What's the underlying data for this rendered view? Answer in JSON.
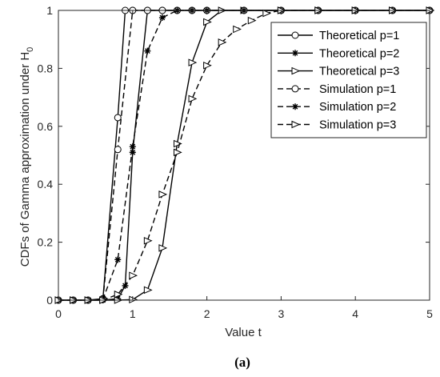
{
  "chart_data": {
    "type": "line",
    "xlabel": "Value t",
    "ylabel": "CDFs of Gamma approximation under H",
    "ylabel_subscript": "0",
    "caption": "(a)",
    "xlim": [
      0,
      5
    ],
    "ylim": [
      0,
      1
    ],
    "xticks": [
      0,
      1,
      2,
      3,
      4,
      5
    ],
    "yticks": [
      0,
      0.2,
      0.4,
      0.6,
      0.8,
      1
    ],
    "xtick_labels": [
      "0",
      "1",
      "2",
      "3",
      "4",
      "5"
    ],
    "ytick_labels": [
      "0",
      "0.2",
      "0.4",
      "0.6",
      "0.8",
      "1"
    ],
    "grid": false,
    "legend_position": "top-right",
    "series": [
      {
        "name": "Theoretical p=1",
        "marker": "circle",
        "dash": "solid",
        "color": "#000000",
        "x": [
          0,
          0.2,
          0.4,
          0.6,
          0.8,
          0.9,
          1.0,
          1.2,
          1.4,
          1.6,
          1.8,
          2,
          2.5,
          3,
          3.5,
          4,
          4.5,
          5
        ],
        "y": [
          0,
          0,
          0,
          0.005,
          0.63,
          1.0,
          1.0,
          1,
          1,
          1,
          1,
          1,
          1,
          1,
          1,
          1,
          1,
          1
        ]
      },
      {
        "name": "Theoretical p=2",
        "marker": "asterisk",
        "dash": "solid",
        "color": "#000000",
        "x": [
          0,
          0.2,
          0.4,
          0.6,
          0.8,
          0.9,
          1.0,
          1.2,
          1.4,
          1.6,
          1.8,
          2,
          2.5,
          3,
          3.5,
          4,
          4.5,
          5
        ],
        "y": [
          0,
          0,
          0,
          0,
          0.005,
          0.05,
          0.51,
          1.0,
          1,
          1,
          1,
          1,
          1,
          1,
          1,
          1,
          1,
          1
        ]
      },
      {
        "name": "Theoretical p=3",
        "marker": "triangle-right",
        "dash": "solid",
        "color": "#000000",
        "x": [
          0,
          0.2,
          0.4,
          0.6,
          0.8,
          1.0,
          1.2,
          1.4,
          1.6,
          1.8,
          2.0,
          2.2,
          2.5,
          3,
          3.5,
          4,
          4.5,
          5
        ],
        "y": [
          0,
          0,
          0,
          0,
          0,
          0.002,
          0.035,
          0.18,
          0.54,
          0.82,
          0.96,
          1.0,
          1,
          1,
          1,
          1,
          1,
          1
        ]
      },
      {
        "name": "Simulation p=1",
        "marker": "circle",
        "dash": "dashed",
        "color": "#000000",
        "x": [
          0,
          0.2,
          0.4,
          0.6,
          0.8,
          1.0,
          1.2,
          1.4,
          1.6,
          1.8,
          2,
          2.5,
          3,
          3.5,
          4,
          4.5,
          5
        ],
        "y": [
          0,
          0,
          0,
          0.003,
          0.52,
          1.0,
          1,
          1,
          1,
          1,
          1,
          1,
          1,
          1,
          1,
          1,
          1
        ]
      },
      {
        "name": "Simulation p=2",
        "marker": "asterisk",
        "dash": "dashed",
        "color": "#000000",
        "x": [
          0,
          0.2,
          0.4,
          0.6,
          0.8,
          1.0,
          1.2,
          1.4,
          1.6,
          1.8,
          2,
          2.5,
          3,
          3.5,
          4,
          4.5,
          5
        ],
        "y": [
          0,
          0,
          0,
          0.003,
          0.14,
          0.53,
          0.86,
          0.975,
          1.0,
          1,
          1,
          1,
          1,
          1,
          1,
          1,
          1
        ]
      },
      {
        "name": "Simulation p=3",
        "marker": "triangle-right",
        "dash": "dashed",
        "color": "#000000",
        "x": [
          0,
          0.2,
          0.4,
          0.6,
          0.8,
          1.0,
          1.2,
          1.4,
          1.6,
          1.8,
          2.0,
          2.2,
          2.4,
          2.6,
          2.8,
          3.0,
          3.5,
          4,
          4.5,
          5
        ],
        "y": [
          0,
          0,
          0,
          0,
          0.02,
          0.085,
          0.205,
          0.365,
          0.51,
          0.695,
          0.81,
          0.89,
          0.935,
          0.965,
          0.99,
          1.0,
          1,
          1,
          1,
          1
        ]
      }
    ]
  }
}
